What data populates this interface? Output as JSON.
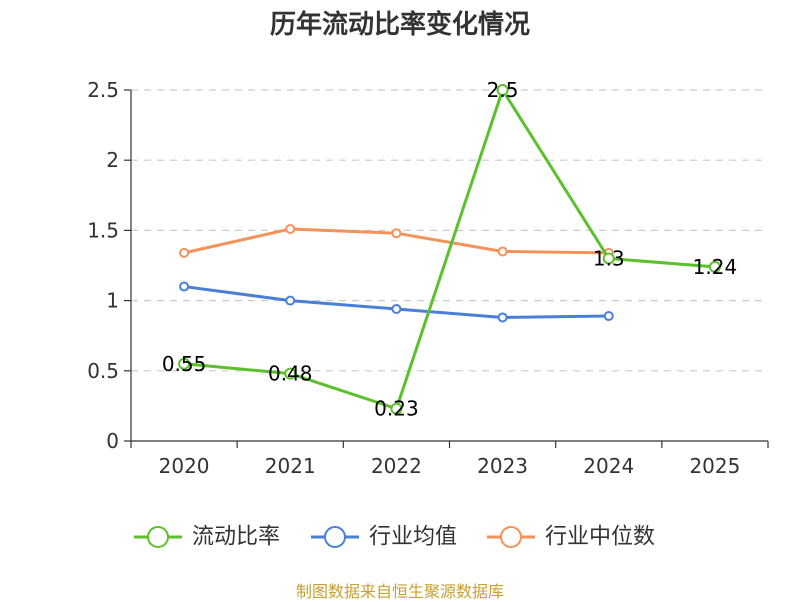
{
  "chart_data": {
    "type": "line",
    "title": "历年流动比率变化情况",
    "categories": [
      "2020",
      "2021",
      "2022",
      "2023",
      "2024",
      "2025"
    ],
    "ylim": [
      0,
      2.5
    ],
    "yticks": [
      "0",
      "0.5",
      "1",
      "1.5",
      "2",
      "2.5"
    ],
    "grid": true,
    "legend_position": "bottom",
    "series": [
      {
        "name": "流动比率",
        "color": "#5cc02c",
        "values": [
          0.55,
          0.48,
          0.23,
          2.5,
          1.3,
          1.24
        ],
        "labels": [
          "0.55",
          "0.48",
          "0.23",
          "2.5",
          "1.3",
          "1.24"
        ]
      },
      {
        "name": "行业均值",
        "color": "#4a7fd8",
        "values": [
          1.1,
          1.0,
          0.94,
          0.88,
          0.89,
          null
        ]
      },
      {
        "name": "行业中位数",
        "color": "#f5915a",
        "values": [
          1.34,
          1.51,
          1.48,
          1.35,
          1.34,
          null
        ]
      }
    ]
  },
  "source": "制图数据来自恒生聚源数据库"
}
